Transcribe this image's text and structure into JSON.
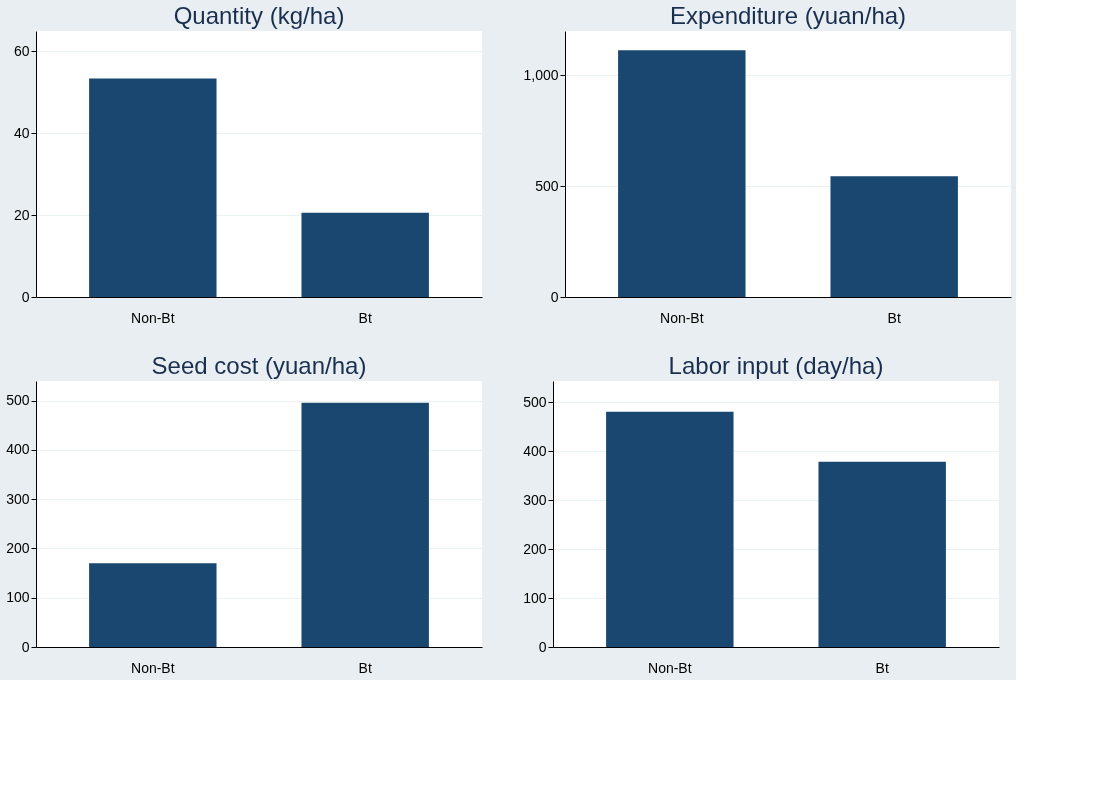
{
  "chart_data": [
    {
      "type": "bar",
      "title": "Quantity (kg/ha)",
      "categories": [
        "Non-Bt",
        "Bt"
      ],
      "values": [
        53.4,
        20.6
      ],
      "color": "#1a476f",
      "ylim": [
        0,
        65
      ],
      "yticks": [
        0,
        20,
        40,
        60
      ],
      "grid": "y"
    },
    {
      "type": "bar",
      "title": "Expenditure (yuan/ha)",
      "categories": [
        "Non-Bt",
        "Bt"
      ],
      "values": [
        1113,
        545
      ],
      "color": "#1a476f",
      "ylim": [
        0,
        1200
      ],
      "yticks": [
        0,
        500,
        {
          "value": 1000,
          "label": "1,000"
        }
      ],
      "grid": "y"
    },
    {
      "type": "bar",
      "title": "Seed cost (yuan/ha)",
      "categories": [
        "Non-Bt",
        "Bt"
      ],
      "values": [
        170,
        496
      ],
      "color": "#1a476f",
      "ylim": [
        0,
        540
      ],
      "yticks": [
        0,
        100,
        200,
        300,
        400,
        500
      ],
      "grid": "y"
    },
    {
      "type": "bar",
      "title": "Labor input (day/ha)",
      "categories": [
        "Non-Bt",
        "Bt"
      ],
      "values": [
        480,
        378
      ],
      "color": "#1a476f",
      "ylim": [
        0,
        543
      ],
      "yticks": [
        0,
        100,
        200,
        300,
        400,
        500
      ],
      "grid": "y"
    }
  ]
}
